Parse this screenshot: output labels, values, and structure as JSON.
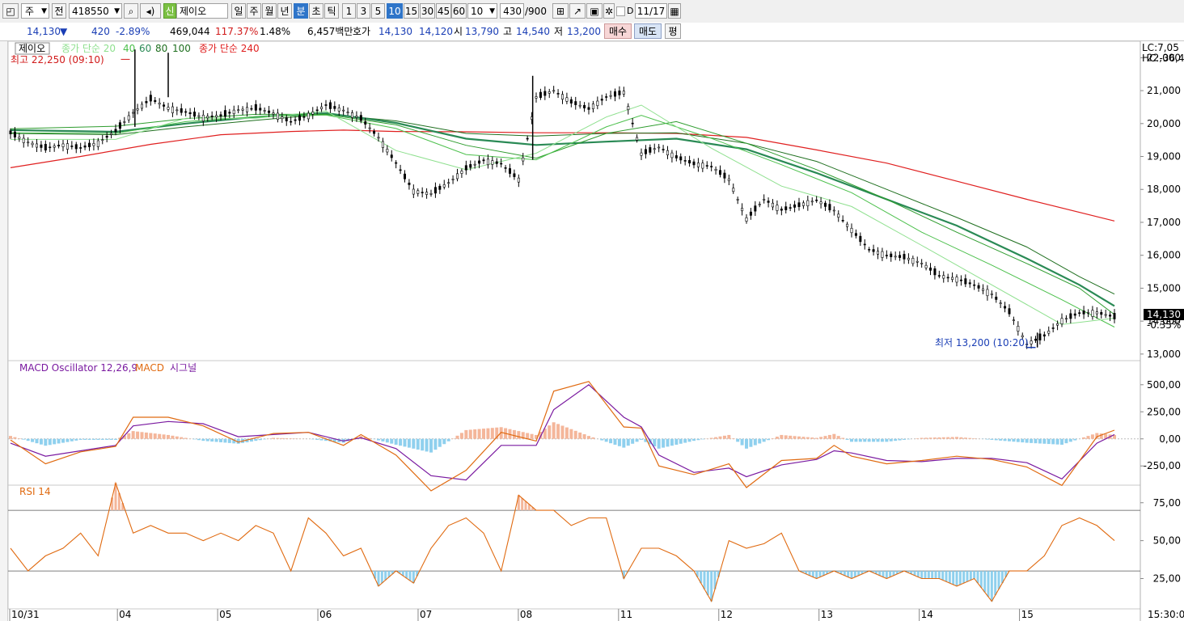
{
  "toolbar": {
    "type_label": "주",
    "mode_label": "전",
    "code": "418550",
    "badge": "신",
    "name": "제이오",
    "periods": [
      "일",
      "주",
      "월",
      "년",
      "분",
      "초",
      "틱"
    ],
    "selected_period": "분",
    "intervals": [
      "1",
      "3",
      "5",
      "10",
      "15",
      "30",
      "45",
      "60"
    ],
    "selected_interval": "10",
    "interval_value": "10",
    "count": "430",
    "count_total": "/900",
    "date_flag": "D",
    "date": "11/17"
  },
  "quote": {
    "price": "14,130",
    "change_arrow": "▼",
    "change": "420",
    "change_pct": "-2.89%",
    "volume": "469,044",
    "volume_ratio": "117.37%",
    "turnover_pct": "1.48%",
    "amount": "6,457백만",
    "bid_label": "호가",
    "ask": "14,130",
    "bid": "14,120",
    "open_label": "시",
    "open": "13,790",
    "high_label": "고",
    "high": "14,540",
    "low_label": "저",
    "low": "13,200",
    "buy_label": "매수",
    "sell_label": "매도",
    "eval_label": "평"
  },
  "colors": {
    "candle": "#000000",
    "ma_light": "#8fe08f",
    "ma20": "#4cc04c",
    "ma40": "#2e9c2e",
    "ma60": "#2a8a55",
    "ma80": "#1f6f1f",
    "ma240": "#e02020",
    "macd": "#e06a10",
    "signal": "#7a1aa0",
    "osc_pos": "#f4b69a",
    "osc_neg": "#8fd0ee",
    "rsi": "#e06a10"
  },
  "chart_data": [
    {
      "type": "candlestick",
      "title": "제이오",
      "legend": [
        {
          "name": "종가 단순 20",
          "color": "#8fe08f"
        },
        {
          "name": "40",
          "color": "#4cc04c"
        },
        {
          "name": "60",
          "color": "#2a8a55"
        },
        {
          "name": "80",
          "color": "#1f6f1f"
        },
        {
          "name": "100",
          "color": "#1f6f1f"
        },
        {
          "name": "종가 단순 240",
          "color": "#e02020"
        }
      ],
      "ylim": [
        12800,
        22500
      ],
      "yticks": [
        "22,000",
        "21,000",
        "20,000",
        "19,000",
        "18,000",
        "17,000",
        "16,000",
        "15,000",
        "14,000",
        "13,000"
      ],
      "x_labels": [
        "10/31",
        "04",
        "05",
        "06",
        "07",
        "08",
        "11",
        "12",
        "13",
        "14",
        "15"
      ],
      "time_label": "15:30:00",
      "lc_label": "LC:7,05",
      "hc_label": "HC:-36,49",
      "high_annotation": "최고 22,250 (09:10)",
      "low_annotation": "최저 13,200 (10:20)",
      "last_price": "14,130",
      "last_pct": "-0.35%",
      "price_path": [
        [
          0,
          19720
        ],
        [
          1,
          19430
        ],
        [
          2,
          19260
        ],
        [
          3,
          19350
        ],
        [
          4,
          19260
        ],
        [
          5,
          19410
        ],
        [
          6,
          19780
        ],
        [
          7,
          20330
        ],
        [
          8,
          20750
        ],
        [
          9,
          20470
        ],
        [
          10,
          20350
        ],
        [
          11,
          20190
        ],
        [
          12,
          20240
        ],
        [
          13,
          20410
        ],
        [
          14,
          20470
        ],
        [
          15,
          20310
        ],
        [
          16,
          20050
        ],
        [
          17,
          20250
        ],
        [
          18,
          20560
        ],
        [
          19,
          20400
        ],
        [
          20,
          20150
        ],
        [
          21,
          19580
        ],
        [
          22,
          18800
        ],
        [
          23,
          17950
        ],
        [
          24,
          17870
        ],
        [
          25,
          18200
        ],
        [
          26,
          18640
        ],
        [
          27,
          18880
        ],
        [
          28,
          18780
        ],
        [
          29,
          18300
        ],
        [
          30,
          20800
        ],
        [
          31,
          21000
        ],
        [
          32,
          20660
        ],
        [
          33,
          20450
        ],
        [
          34,
          20810
        ],
        [
          35,
          20950
        ],
        [
          36,
          19080
        ],
        [
          37,
          19280
        ],
        [
          38,
          18980
        ],
        [
          39,
          18780
        ],
        [
          40,
          18700
        ],
        [
          41,
          18300
        ],
        [
          42,
          17100
        ],
        [
          43,
          17700
        ],
        [
          44,
          17380
        ],
        [
          45,
          17520
        ],
        [
          46,
          17680
        ],
        [
          47,
          17360
        ],
        [
          48,
          16770
        ],
        [
          49,
          16180
        ],
        [
          50,
          16000
        ],
        [
          51,
          15940
        ],
        [
          52,
          15760
        ],
        [
          53,
          15380
        ],
        [
          54,
          15280
        ],
        [
          55,
          15100
        ],
        [
          56,
          14820
        ],
        [
          57,
          14280
        ],
        [
          58,
          13300
        ],
        [
          59,
          13560
        ],
        [
          60,
          14020
        ],
        [
          61,
          14250
        ],
        [
          62,
          14260
        ],
        [
          63,
          14130
        ]
      ],
      "ma_paths": {
        "ma_short": [
          [
            0,
            19520
          ],
          [
            6,
            19520
          ],
          [
            10,
            20160
          ],
          [
            14,
            20160
          ],
          [
            18,
            20380
          ],
          [
            22,
            19180
          ],
          [
            26,
            18600
          ],
          [
            30,
            19100
          ],
          [
            34,
            20200
          ],
          [
            36,
            20560
          ],
          [
            40,
            19250
          ],
          [
            44,
            18100
          ],
          [
            48,
            17480
          ],
          [
            52,
            16300
          ],
          [
            56,
            15100
          ],
          [
            60,
            13900
          ],
          [
            63,
            14090
          ]
        ],
        "ma20": [
          [
            0,
            19720
          ],
          [
            6,
            19700
          ],
          [
            10,
            20060
          ],
          [
            14,
            20210
          ],
          [
            18,
            20260
          ],
          [
            22,
            19850
          ],
          [
            26,
            19060
          ],
          [
            30,
            18900
          ],
          [
            34,
            19900
          ],
          [
            36,
            20250
          ],
          [
            40,
            19550
          ],
          [
            44,
            18750
          ],
          [
            48,
            17900
          ],
          [
            52,
            16700
          ],
          [
            56,
            15700
          ],
          [
            60,
            14650
          ],
          [
            63,
            13820
          ]
        ],
        "ma40": [
          [
            0,
            19840
          ],
          [
            6,
            19920
          ],
          [
            10,
            20150
          ],
          [
            14,
            20280
          ],
          [
            18,
            20280
          ],
          [
            22,
            19960
          ],
          [
            26,
            19340
          ],
          [
            30,
            18950
          ],
          [
            34,
            19700
          ],
          [
            38,
            20060
          ],
          [
            42,
            19400
          ],
          [
            46,
            18600
          ],
          [
            50,
            17700
          ],
          [
            54,
            16700
          ],
          [
            58,
            15750
          ],
          [
            61,
            15000
          ],
          [
            63,
            14200
          ]
        ],
        "ma60": [
          [
            0,
            19800
          ],
          [
            6,
            19750
          ],
          [
            10,
            20000
          ],
          [
            14,
            20200
          ],
          [
            18,
            20320
          ],
          [
            22,
            20020
          ],
          [
            26,
            19540
          ],
          [
            30,
            19350
          ],
          [
            34,
            19450
          ],
          [
            38,
            19540
          ],
          [
            42,
            19220
          ],
          [
            46,
            18500
          ],
          [
            50,
            17700
          ],
          [
            54,
            16900
          ],
          [
            58,
            15900
          ],
          [
            61,
            15100
          ],
          [
            63,
            14460
          ]
        ],
        "ma80": [
          [
            0,
            19700
          ],
          [
            6,
            19660
          ],
          [
            10,
            19900
          ],
          [
            14,
            20100
          ],
          [
            18,
            20280
          ],
          [
            22,
            20080
          ],
          [
            26,
            19700
          ],
          [
            30,
            19620
          ],
          [
            34,
            19700
          ],
          [
            38,
            19720
          ],
          [
            42,
            19400
          ],
          [
            46,
            18850
          ],
          [
            50,
            18000
          ],
          [
            54,
            17150
          ],
          [
            58,
            16250
          ],
          [
            61,
            15350
          ],
          [
            63,
            14820
          ]
        ],
        "ma240": [
          [
            0,
            18660
          ],
          [
            4,
            19000
          ],
          [
            8,
            19370
          ],
          [
            12,
            19660
          ],
          [
            16,
            19760
          ],
          [
            19,
            19800
          ],
          [
            22,
            19760
          ],
          [
            26,
            19750
          ],
          [
            30,
            19720
          ],
          [
            34,
            19720
          ],
          [
            38,
            19700
          ],
          [
            42,
            19580
          ],
          [
            46,
            19200
          ],
          [
            50,
            18800
          ],
          [
            54,
            18250
          ],
          [
            58,
            17700
          ],
          [
            63,
            17040
          ]
        ]
      }
    },
    {
      "type": "line",
      "title": "MACD Oscillator 12,26,9",
      "series_labels": [
        "MACD",
        "시그널"
      ],
      "ylim": [
        -420,
        700
      ],
      "yticks": [
        "500,00",
        "250,00",
        "0,00",
        "-250,00"
      ],
      "macd": [
        [
          0,
          -10
        ],
        [
          2,
          -230
        ],
        [
          4,
          -120
        ],
        [
          6,
          -70
        ],
        [
          7,
          200
        ],
        [
          9,
          200
        ],
        [
          11,
          120
        ],
        [
          13,
          -30
        ],
        [
          15,
          50
        ],
        [
          17,
          60
        ],
        [
          19,
          -60
        ],
        [
          20,
          40
        ],
        [
          22,
          -150
        ],
        [
          24,
          -480
        ],
        [
          26,
          -290
        ],
        [
          28,
          60
        ],
        [
          30,
          -20
        ],
        [
          31,
          440
        ],
        [
          33,
          530
        ],
        [
          35,
          110
        ],
        [
          36,
          100
        ],
        [
          37,
          -250
        ],
        [
          39,
          -330
        ],
        [
          41,
          -230
        ],
        [
          42,
          -450
        ],
        [
          44,
          -200
        ],
        [
          46,
          -180
        ],
        [
          47,
          -60
        ],
        [
          48,
          -160
        ],
        [
          50,
          -230
        ],
        [
          52,
          -200
        ],
        [
          54,
          -160
        ],
        [
          56,
          -190
        ],
        [
          58,
          -260
        ],
        [
          60,
          -430
        ],
        [
          62,
          20
        ],
        [
          63,
          80
        ]
      ],
      "signal": [
        [
          0,
          -40
        ],
        [
          2,
          -160
        ],
        [
          4,
          -110
        ],
        [
          6,
          -60
        ],
        [
          7,
          120
        ],
        [
          9,
          160
        ],
        [
          11,
          140
        ],
        [
          13,
          20
        ],
        [
          15,
          40
        ],
        [
          17,
          60
        ],
        [
          19,
          -20
        ],
        [
          20,
          10
        ],
        [
          22,
          -90
        ],
        [
          24,
          -340
        ],
        [
          26,
          -380
        ],
        [
          28,
          -60
        ],
        [
          30,
          -60
        ],
        [
          31,
          270
        ],
        [
          33,
          500
        ],
        [
          35,
          200
        ],
        [
          36,
          110
        ],
        [
          37,
          -150
        ],
        [
          39,
          -310
        ],
        [
          41,
          -270
        ],
        [
          42,
          -350
        ],
        [
          44,
          -240
        ],
        [
          46,
          -190
        ],
        [
          47,
          -110
        ],
        [
          48,
          -130
        ],
        [
          50,
          -200
        ],
        [
          52,
          -210
        ],
        [
          54,
          -180
        ],
        [
          56,
          -180
        ],
        [
          58,
          -220
        ],
        [
          60,
          -370
        ],
        [
          62,
          -40
        ],
        [
          63,
          40
        ]
      ]
    },
    {
      "type": "line",
      "title": "RSI 14",
      "ylim": [
        5,
        85
      ],
      "yticks": [
        "75,00",
        "50,00",
        "25,00"
      ],
      "reference_lines": [
        70,
        30
      ],
      "rsi": [
        [
          0,
          45
        ],
        [
          1,
          30
        ],
        [
          2,
          40
        ],
        [
          3,
          45
        ],
        [
          4,
          55
        ],
        [
          5,
          40
        ],
        [
          6,
          88
        ],
        [
          7,
          55
        ],
        [
          8,
          60
        ],
        [
          9,
          55
        ],
        [
          10,
          55
        ],
        [
          11,
          50
        ],
        [
          12,
          55
        ],
        [
          13,
          50
        ],
        [
          14,
          60
        ],
        [
          15,
          55
        ],
        [
          16,
          30
        ],
        [
          17,
          65
        ],
        [
          18,
          55
        ],
        [
          19,
          40
        ],
        [
          20,
          45
        ],
        [
          21,
          20
        ],
        [
          22,
          30
        ],
        [
          23,
          22
        ],
        [
          24,
          45
        ],
        [
          25,
          60
        ],
        [
          26,
          65
        ],
        [
          27,
          55
        ],
        [
          28,
          30
        ],
        [
          29,
          80
        ],
        [
          30,
          70
        ],
        [
          31,
          70
        ],
        [
          32,
          60
        ],
        [
          33,
          65
        ],
        [
          34,
          65
        ],
        [
          35,
          25
        ],
        [
          36,
          45
        ],
        [
          37,
          45
        ],
        [
          38,
          40
        ],
        [
          39,
          30
        ],
        [
          40,
          10
        ],
        [
          41,
          50
        ],
        [
          42,
          45
        ],
        [
          43,
          48
        ],
        [
          44,
          55
        ],
        [
          45,
          30
        ],
        [
          46,
          25
        ],
        [
          47,
          30
        ],
        [
          48,
          25
        ],
        [
          49,
          30
        ],
        [
          50,
          25
        ],
        [
          51,
          30
        ],
        [
          52,
          25
        ],
        [
          53,
          25
        ],
        [
          54,
          20
        ],
        [
          55,
          25
        ],
        [
          56,
          10
        ],
        [
          57,
          30
        ],
        [
          58,
          30
        ],
        [
          59,
          40
        ],
        [
          60,
          60
        ],
        [
          61,
          65
        ],
        [
          62,
          60
        ],
        [
          63,
          50
        ]
      ]
    }
  ]
}
